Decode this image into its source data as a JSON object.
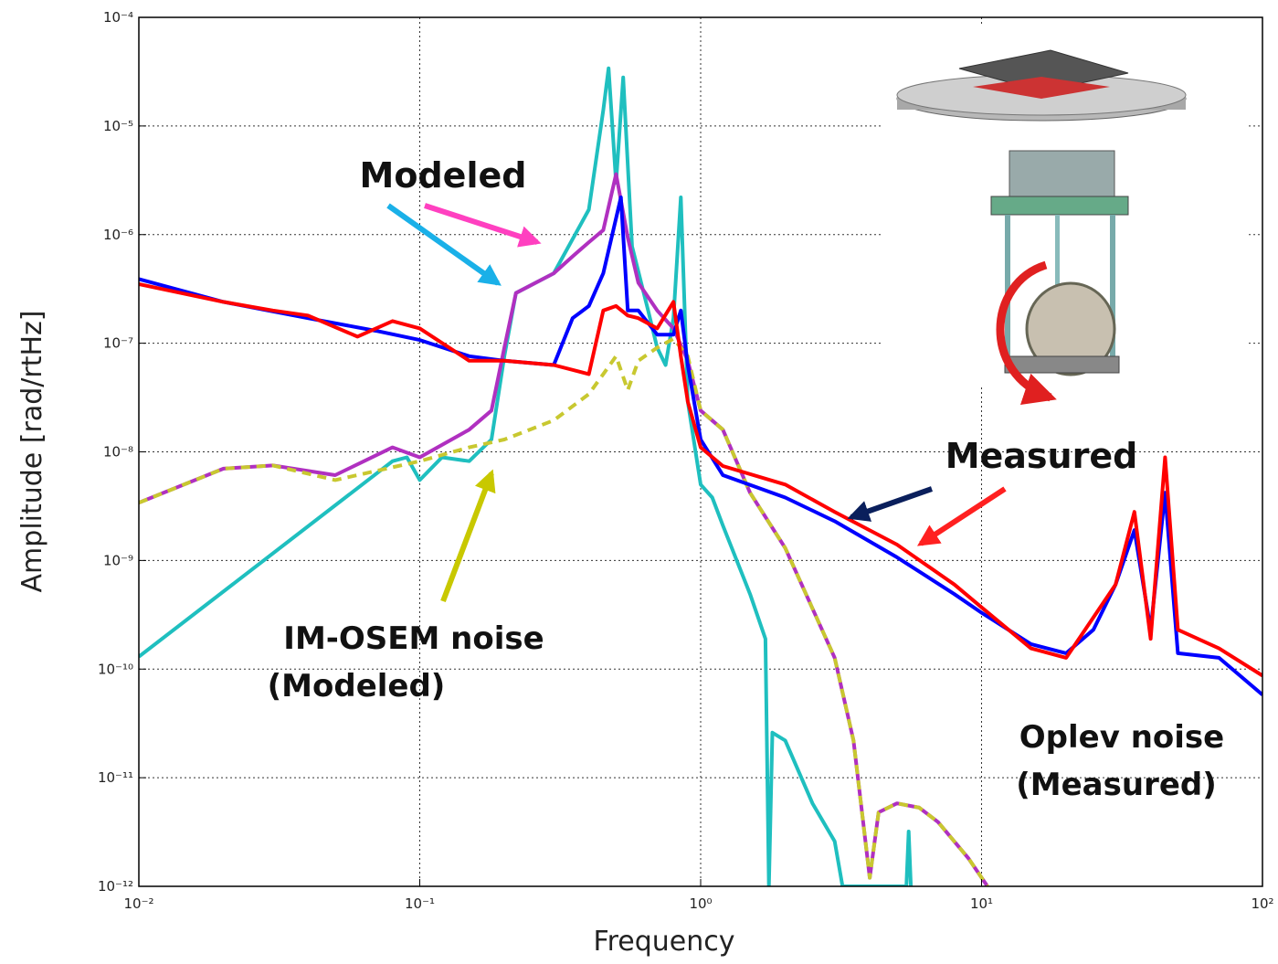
{
  "chart_data": {
    "type": "line",
    "xscale": "log",
    "yscale": "log",
    "grid": true,
    "xlabel": "Frequency",
    "ylabel": "Amplitude [rad/rtHz]",
    "xlim": [
      0.01,
      100
    ],
    "ylim": [
      1e-12,
      0.0001
    ],
    "xticks": [
      {
        "value": 0.01,
        "label": "10⁻²"
      },
      {
        "value": 0.1,
        "label": "10⁻¹"
      },
      {
        "value": 1,
        "label": "10⁰"
      },
      {
        "value": 10,
        "label": "10¹"
      },
      {
        "value": 100,
        "label": "10²"
      }
    ],
    "yticks": [
      {
        "value": 1e-12,
        "label": "10⁻¹²"
      },
      {
        "value": 1e-11,
        "label": "10⁻¹¹"
      },
      {
        "value": 1e-10,
        "label": "10⁻¹⁰"
      },
      {
        "value": 1e-09,
        "label": "10⁻⁹"
      },
      {
        "value": 1e-08,
        "label": "10⁻⁸"
      },
      {
        "value": 1e-07,
        "label": "10⁻⁷"
      },
      {
        "value": 1e-06,
        "label": "10⁻⁶"
      },
      {
        "value": 1e-05,
        "label": "10⁻⁵"
      },
      {
        "value": 0.0001,
        "label": "10⁻⁴"
      }
    ],
    "annotations": [
      "Modeled",
      "Measured",
      "IM-OSEM noise",
      "(Modeled)",
      "Oplev noise",
      "(Measured)"
    ],
    "series": [
      {
        "color": "#1fbfbf",
        "linestyle": "solid",
        "x": [
          0.01,
          0.08,
          0.09,
          0.1,
          0.12,
          0.15,
          0.18,
          0.2,
          0.22,
          0.3,
          0.4,
          0.45,
          0.47,
          0.5,
          0.53,
          0.57,
          0.65,
          0.7,
          0.75,
          0.8,
          0.85,
          0.9,
          1,
          1.1,
          1.2,
          1.5,
          1.7,
          1.75,
          1.8,
          2,
          2.5,
          3,
          3.2,
          5.4,
          5.5,
          5.6
        ],
        "values": [
          1.3e-10,
          8.2e-09,
          8.9e-09,
          5.5e-09,
          8.9e-09,
          8.2e-09,
          1.3e-08,
          7.6e-08,
          2.9e-07,
          4.4e-07,
          1.7e-06,
          1.4e-05,
          3.4e-05,
          3e-06,
          2.8e-05,
          7.8e-07,
          2e-07,
          9.1e-08,
          6.3e-08,
          1.7e-07,
          2.2e-06,
          2.9e-08,
          5e-09,
          3.8e-09,
          2.1e-09,
          4.9e-10,
          1.9e-10,
          1e-12,
          2.6e-11,
          2.2e-11,
          5.8e-12,
          2.6e-12,
          1e-12,
          1e-12,
          3.2e-12,
          1e-12
        ]
      },
      {
        "color": "#b030c0",
        "linestyle": "solid",
        "x": [
          0.01,
          0.02,
          0.03,
          0.05,
          0.08,
          0.1,
          0.15,
          0.18,
          0.2,
          0.22,
          0.3,
          0.35,
          0.4,
          0.45,
          0.5,
          0.55,
          0.6,
          0.7,
          0.8,
          0.9,
          1,
          1.2,
          1.5,
          2,
          3,
          3.5,
          4,
          4.3,
          5,
          6,
          7,
          9,
          10.5
        ],
        "values": [
          3.4e-09,
          7e-09,
          7.5e-09,
          6.1e-09,
          1.1e-08,
          8.9e-09,
          1.6e-08,
          2.4e-08,
          9.1e-08,
          2.9e-07,
          4.4e-07,
          6.3e-07,
          8.5e-07,
          1.1e-06,
          3.6e-06,
          9.4e-07,
          3.6e-07,
          2e-07,
          1.37e-07,
          6.9e-08,
          2.4e-08,
          1.6e-08,
          4.2e-09,
          1.3e-09,
          1.27e-10,
          2.2e-11,
          1.2e-12,
          4.8e-12,
          5.8e-12,
          5.3e-12,
          3.9e-12,
          1.8e-12,
          1e-12
        ]
      },
      {
        "color": "#c8c830",
        "linestyle": "dashed",
        "x": [
          0.01,
          0.02,
          0.03,
          0.05,
          0.1,
          0.15,
          0.2,
          0.3,
          0.4,
          0.45,
          0.5,
          0.55,
          0.6,
          0.7,
          0.8,
          0.9,
          1,
          1.2,
          1.5,
          2,
          3,
          3.5,
          4,
          4.3,
          5,
          6,
          7,
          9,
          10.5
        ],
        "values": [
          3.4e-09,
          7e-09,
          7.5e-09,
          5.5e-09,
          8.2e-09,
          1.1e-08,
          1.3e-08,
          1.95e-08,
          3.4e-08,
          5.2e-08,
          7.6e-08,
          3.7e-08,
          6.9e-08,
          9.1e-08,
          1.1e-07,
          7.6e-08,
          2.4e-08,
          1.6e-08,
          4.2e-09,
          1.3e-09,
          1.27e-10,
          2.2e-11,
          1.2e-12,
          4.8e-12,
          5.8e-12,
          5.3e-12,
          3.9e-12,
          1.8e-12,
          1e-12
        ]
      },
      {
        "color": "#0000ff",
        "linestyle": "solid",
        "x": [
          0.01,
          0.02,
          0.04,
          0.07,
          0.1,
          0.15,
          0.2,
          0.3,
          0.35,
          0.4,
          0.45,
          0.52,
          0.55,
          0.6,
          0.7,
          0.8,
          0.85,
          0.9,
          1,
          1.2,
          2,
          3,
          5,
          8,
          10,
          15,
          20,
          25,
          30,
          35,
          40,
          45,
          50,
          70,
          100
        ],
        "values": [
          3.9e-07,
          2.4e-07,
          1.7e-07,
          1.3e-07,
          1.07e-07,
          7.6e-08,
          6.9e-08,
          6.3e-08,
          1.7e-07,
          2.2e-07,
          4.4e-07,
          2.2e-06,
          2e-07,
          2e-07,
          1.2e-07,
          1.2e-07,
          2e-07,
          6.3e-08,
          1.3e-08,
          6.1e-09,
          3.8e-09,
          2.3e-09,
          1.07e-09,
          4.9e-10,
          3.3e-10,
          1.7e-10,
          1.4e-10,
          2.3e-10,
          6e-10,
          1.9e-09,
          2.3e-10,
          4.2e-09,
          1.4e-10,
          1.27e-10,
          5.8e-11
        ]
      },
      {
        "color": "#ff0000",
        "linestyle": "solid",
        "x": [
          0.01,
          0.02,
          0.03,
          0.04,
          0.06,
          0.08,
          0.1,
          0.15,
          0.2,
          0.3,
          0.4,
          0.45,
          0.5,
          0.55,
          0.6,
          0.7,
          0.8,
          0.85,
          0.9,
          1,
          1.2,
          2,
          3,
          5,
          8,
          10,
          15,
          20,
          30,
          35,
          40,
          45,
          50,
          70,
          100
        ],
        "values": [
          3.5e-07,
          2.4e-07,
          2e-07,
          1.8e-07,
          1.15e-07,
          1.6e-07,
          1.37e-07,
          6.9e-08,
          6.9e-08,
          6.3e-08,
          5.2e-08,
          2e-07,
          2.2e-07,
          1.8e-07,
          1.7e-07,
          1.37e-07,
          2.4e-07,
          7.6e-08,
          2.9e-08,
          1.1e-08,
          7.4e-09,
          5e-09,
          2.8e-09,
          1.4e-09,
          6e-10,
          3.7e-10,
          1.55e-10,
          1.27e-10,
          6e-10,
          2.8e-09,
          1.9e-10,
          8.9e-09,
          2.3e-10,
          1.55e-10,
          8.7e-11
        ]
      }
    ]
  }
}
